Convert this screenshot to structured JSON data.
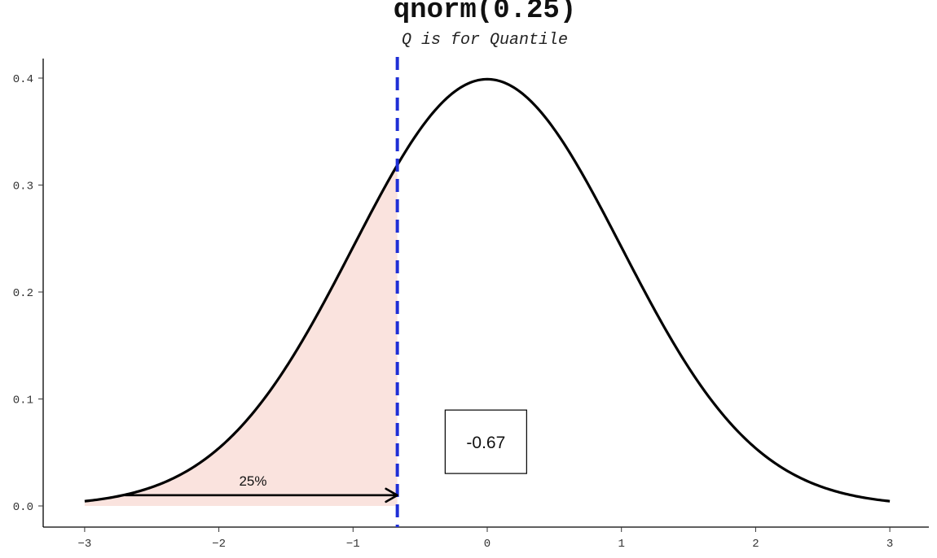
{
  "chart_data": {
    "type": "area",
    "title": "qnorm(0.25)",
    "subtitle": "Q is for Quantile",
    "xlabel": "",
    "ylabel": "",
    "xlim": [
      -3,
      3
    ],
    "ylim": [
      0,
      0.4
    ],
    "x_ticks": [
      "-3",
      "-2",
      "-1",
      "0",
      "1",
      "2",
      "3"
    ],
    "y_ticks": [
      "0.0",
      "0.1",
      "0.2",
      "0.3",
      "0.4"
    ],
    "series": [
      {
        "x": [
          -3,
          -2.75,
          -2.5,
          -2.25,
          -2,
          -1.75,
          -1.5,
          -1.25,
          -1,
          -0.75,
          -0.5,
          -0.25,
          0,
          0.25,
          0.5,
          0.75,
          1,
          1.25,
          1.5,
          1.75,
          2,
          2.25,
          2.5,
          2.75,
          3
        ],
        "y": [
          0.0044,
          0.0091,
          0.0175,
          0.0317,
          0.054,
          0.0863,
          0.1295,
          0.1826,
          0.242,
          0.3011,
          0.3521,
          0.3867,
          0.3989,
          0.3867,
          0.3521,
          0.3011,
          0.242,
          0.1826,
          0.1295,
          0.0863,
          0.054,
          0.0317,
          0.0175,
          0.0091,
          0.0044
        ]
      }
    ],
    "shaded_region": {
      "from": -3,
      "to": -0.67,
      "color": "#fae3de"
    },
    "quantile_line": {
      "x": -0.67,
      "color": "#1f2fd6",
      "style": "dashed"
    },
    "annotations": {
      "arrow_label": "25%",
      "arrow_from": -2.7,
      "arrow_to": -0.67,
      "arrow_y": 0.01,
      "value_box": "-0.67",
      "value_box_x": -0.01,
      "value_box_y": 0.06
    },
    "grid": false,
    "colors": {
      "curve": "#000000",
      "fill": "#fae3de",
      "vline": "#1f2fd6"
    }
  }
}
